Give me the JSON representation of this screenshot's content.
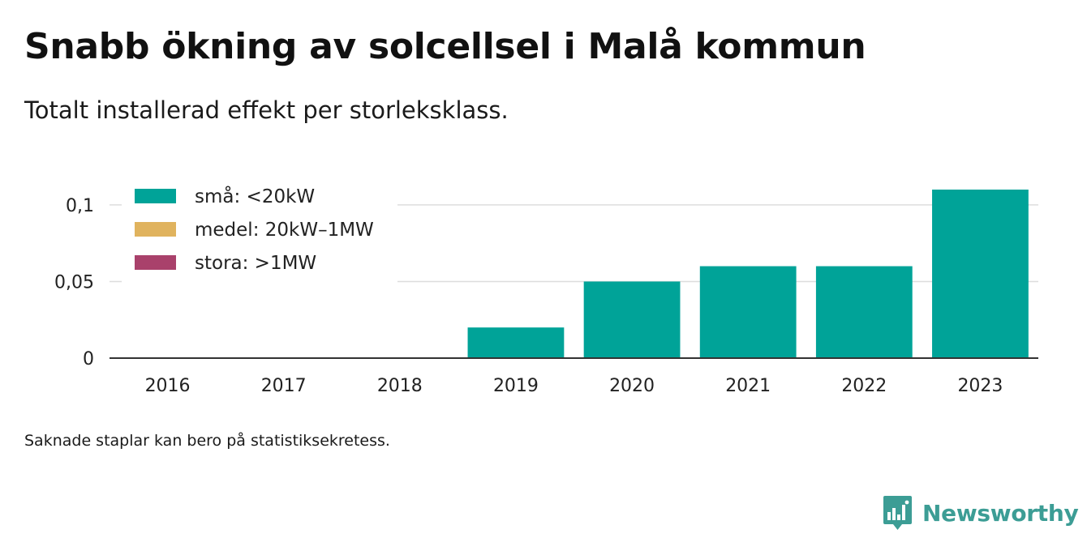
{
  "title": "Snabb ökning av solcellsel i Malå kommun",
  "subtitle": "Totalt installerad effekt per storleksklass.",
  "footnote": "Saknade staplar kan bero på statistiksekretess.",
  "brand": {
    "name": "Newsworthy",
    "icon": "newsworthy-logo-icon",
    "color": "#3c9d95"
  },
  "chart_data": {
    "type": "bar",
    "stacked": true,
    "categories": [
      "2016",
      "2017",
      "2018",
      "2019",
      "2020",
      "2021",
      "2022",
      "2023"
    ],
    "series": [
      {
        "name": "små: <20kW",
        "color": "#00a398",
        "values": [
          0,
          0,
          0,
          0.02,
          0.05,
          0.06,
          0.06,
          0.11
        ]
      },
      {
        "name": "medel: 20kW–1MW",
        "color": "#e0b35e",
        "values": [
          0,
          0,
          0,
          0,
          0,
          0,
          0,
          0
        ]
      },
      {
        "name": "stora: >1MW",
        "color": "#a9416b",
        "values": [
          0,
          0,
          0,
          0,
          0,
          0,
          0,
          0
        ]
      }
    ],
    "ylim": [
      0,
      0.11
    ],
    "yticks": [
      0,
      0.05,
      0.1
    ],
    "ytick_labels": [
      "0",
      "0,05",
      "0,1"
    ],
    "xlabel": "",
    "ylabel": "",
    "grid": true,
    "legend": "top-left"
  }
}
